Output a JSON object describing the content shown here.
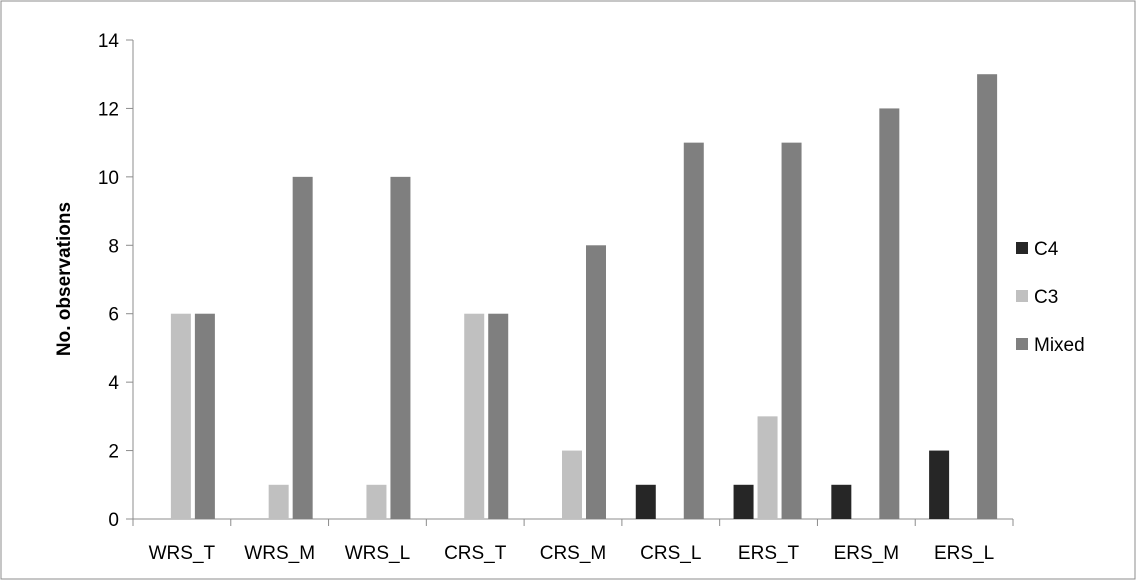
{
  "chart_data": {
    "type": "bar",
    "categories": [
      "WRS_T",
      "WRS_M",
      "WRS_L",
      "CRS_T",
      "CRS_M",
      "CRS_L",
      "ERS_T",
      "ERS_M",
      "ERS_L"
    ],
    "series": [
      {
        "name": "C4",
        "values": [
          0,
          0,
          0,
          0,
          0,
          1,
          1,
          1,
          2
        ],
        "color": "#262626"
      },
      {
        "name": "C3",
        "values": [
          6,
          1,
          1,
          6,
          2,
          0,
          3,
          0,
          0
        ],
        "color": "#c0c0c0"
      },
      {
        "name": "Mixed",
        "values": [
          6,
          10,
          10,
          6,
          8,
          11,
          11,
          12,
          13
        ],
        "color": "#7f7f7f"
      }
    ],
    "title": "",
    "xlabel": "",
    "ylabel": "No. observations",
    "ylim": [
      0,
      14
    ],
    "yticks": [
      0,
      2,
      4,
      6,
      8,
      10,
      12,
      14
    ],
    "grid": false,
    "legend_position": "right"
  }
}
